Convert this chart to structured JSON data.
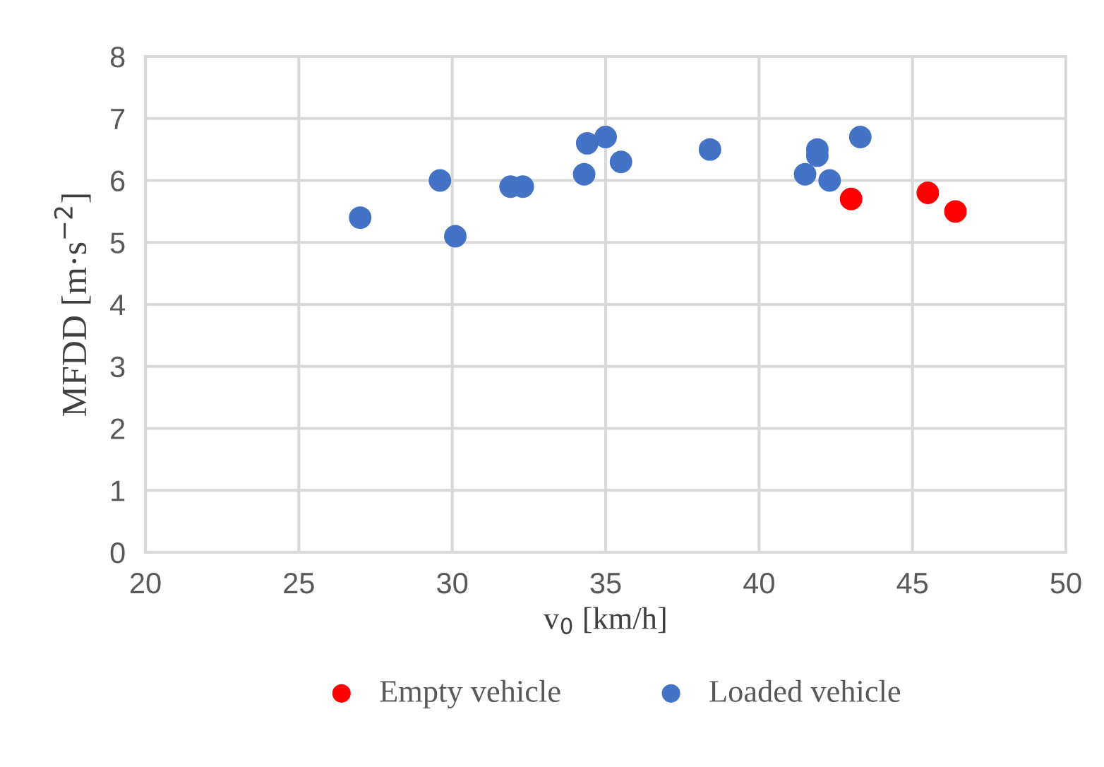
{
  "chart_data": {
    "type": "scatter",
    "xlabel": "v$_{0}$ [km/h]",
    "ylabel": "MFDD [m·s$^{−2}$]",
    "xlim": [
      20,
      50
    ],
    "xticks": [
      20,
      25,
      30,
      35,
      40,
      45,
      50
    ],
    "ylim": [
      0,
      8
    ],
    "yticks": [
      0,
      1,
      2,
      3,
      4,
      5,
      6,
      7,
      8
    ],
    "grid": true,
    "legend": "bottom",
    "marker": "circle",
    "series": [
      {
        "name": "Empty vehicle",
        "color": "#ff0000",
        "x": [
          43.0,
          45.5,
          46.4
        ],
        "values": [
          5.7,
          5.8,
          5.5
        ]
      },
      {
        "name": "Loaded vehicle",
        "color": "#4472c4",
        "x": [
          27.0,
          29.6,
          30.1,
          31.9,
          32.3,
          34.3,
          34.4,
          35.0,
          35.5,
          38.4,
          41.9,
          41.9,
          41.5,
          42.3,
          43.3
        ],
        "values": [
          5.4,
          6.0,
          5.1,
          5.9,
          5.9,
          6.1,
          6.6,
          6.7,
          6.3,
          6.5,
          6.5,
          6.4,
          6.1,
          6.0,
          6.7
        ]
      }
    ]
  }
}
